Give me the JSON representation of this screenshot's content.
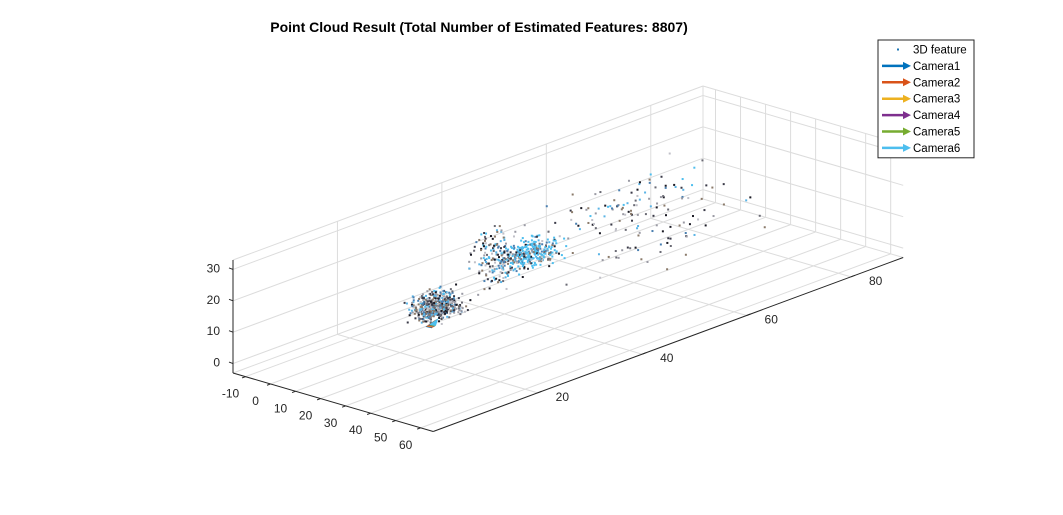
{
  "chart_data": {
    "type": "scatter",
    "title": "Point Cloud Result (Total Number of Estimated Features: 8807)",
    "xlabel": "",
    "ylabel": "",
    "zlabel": "",
    "x_axis": {
      "range": [
        -15,
        65
      ],
      "ticks": [
        -10,
        0,
        10,
        20,
        30,
        40,
        50,
        60
      ]
    },
    "y_axis": {
      "range": [
        0,
        90
      ],
      "ticks": [
        20,
        40,
        60,
        80
      ]
    },
    "z_axis": {
      "range": [
        -3,
        33
      ],
      "ticks": [
        0,
        10,
        20,
        30
      ]
    },
    "grid": true,
    "legend_position": "top-right",
    "legend": [
      {
        "name": "3D feature",
        "marker": "point",
        "color": "#1f77b4"
      },
      {
        "name": "Camera1",
        "marker": "arrow",
        "color": "#0072BD"
      },
      {
        "name": "Camera2",
        "marker": "arrow",
        "color": "#D95319"
      },
      {
        "name": "Camera3",
        "marker": "arrow",
        "color": "#EDB120"
      },
      {
        "name": "Camera4",
        "marker": "arrow",
        "color": "#7E2F8E"
      },
      {
        "name": "Camera5",
        "marker": "arrow",
        "color": "#77AC30"
      },
      {
        "name": "Camera6",
        "marker": "arrow",
        "color": "#4DBEEE"
      }
    ],
    "point_colors": [
      "#1a1a24",
      "#3a3a48",
      "#6a6a74",
      "#9a9aa4",
      "#c0c0c8",
      "#4a7fb0",
      "#5ab4e6",
      "#8a7a6a"
    ],
    "highlight_color": "#4DBEEE",
    "feature_clusters": [
      {
        "x_mean": 12,
        "y_mean": 44,
        "z_mean": 14,
        "x_spread": 5,
        "y_spread": 5,
        "z_spread": 4,
        "count": 300,
        "highlight_share": 0.55
      },
      {
        "x_mean": 11,
        "y_mean": 38,
        "z_mean": 16,
        "x_spread": 4,
        "y_spread": 4,
        "z_spread": 9,
        "count": 160,
        "highlight_share": 0.1
      },
      {
        "x_mean": 0,
        "y_mean": 32,
        "z_mean": 1,
        "x_spread": 5,
        "y_spread": 4,
        "z_spread": 2,
        "count": 320,
        "highlight_share": 0.0
      },
      {
        "x_mean": 5,
        "y_mean": 30,
        "z_mean": 5,
        "x_spread": 3,
        "y_spread": 3,
        "z_spread": 4,
        "count": 160,
        "highlight_share": 0.05
      },
      {
        "x_mean": -10,
        "y_mean": 35,
        "z_mean": 0,
        "x_spread": 3,
        "y_spread": 3,
        "z_spread": 2,
        "count": 80,
        "highlight_share": 0.05
      },
      {
        "x_mean": 30,
        "y_mean": 55,
        "z_mean": 28,
        "x_spread": 15,
        "y_spread": 15,
        "z_spread": 5,
        "count": 90,
        "highlight_share": 0.08
      },
      {
        "x_mean": 15,
        "y_mean": 68,
        "z_mean": 8,
        "x_spread": 18,
        "y_spread": 18,
        "z_spread": 8,
        "count": 60,
        "highlight_share": 0.05
      }
    ],
    "cameras": [
      {
        "name": "Camera1",
        "x": 4.5,
        "y": 28.5,
        "z": -0.6
      },
      {
        "name": "Camera2",
        "x": 4.6,
        "y": 28.6,
        "z": -0.5
      },
      {
        "name": "Camera3",
        "x": 4.7,
        "y": 28.7,
        "z": -0.4
      },
      {
        "name": "Camera4",
        "x": 4.8,
        "y": 28.8,
        "z": -0.3
      },
      {
        "name": "Camera5",
        "x": 4.9,
        "y": 28.9,
        "z": -0.2
      },
      {
        "name": "Camera6",
        "x": 5.0,
        "y": 29.0,
        "z": -0.1
      }
    ]
  }
}
